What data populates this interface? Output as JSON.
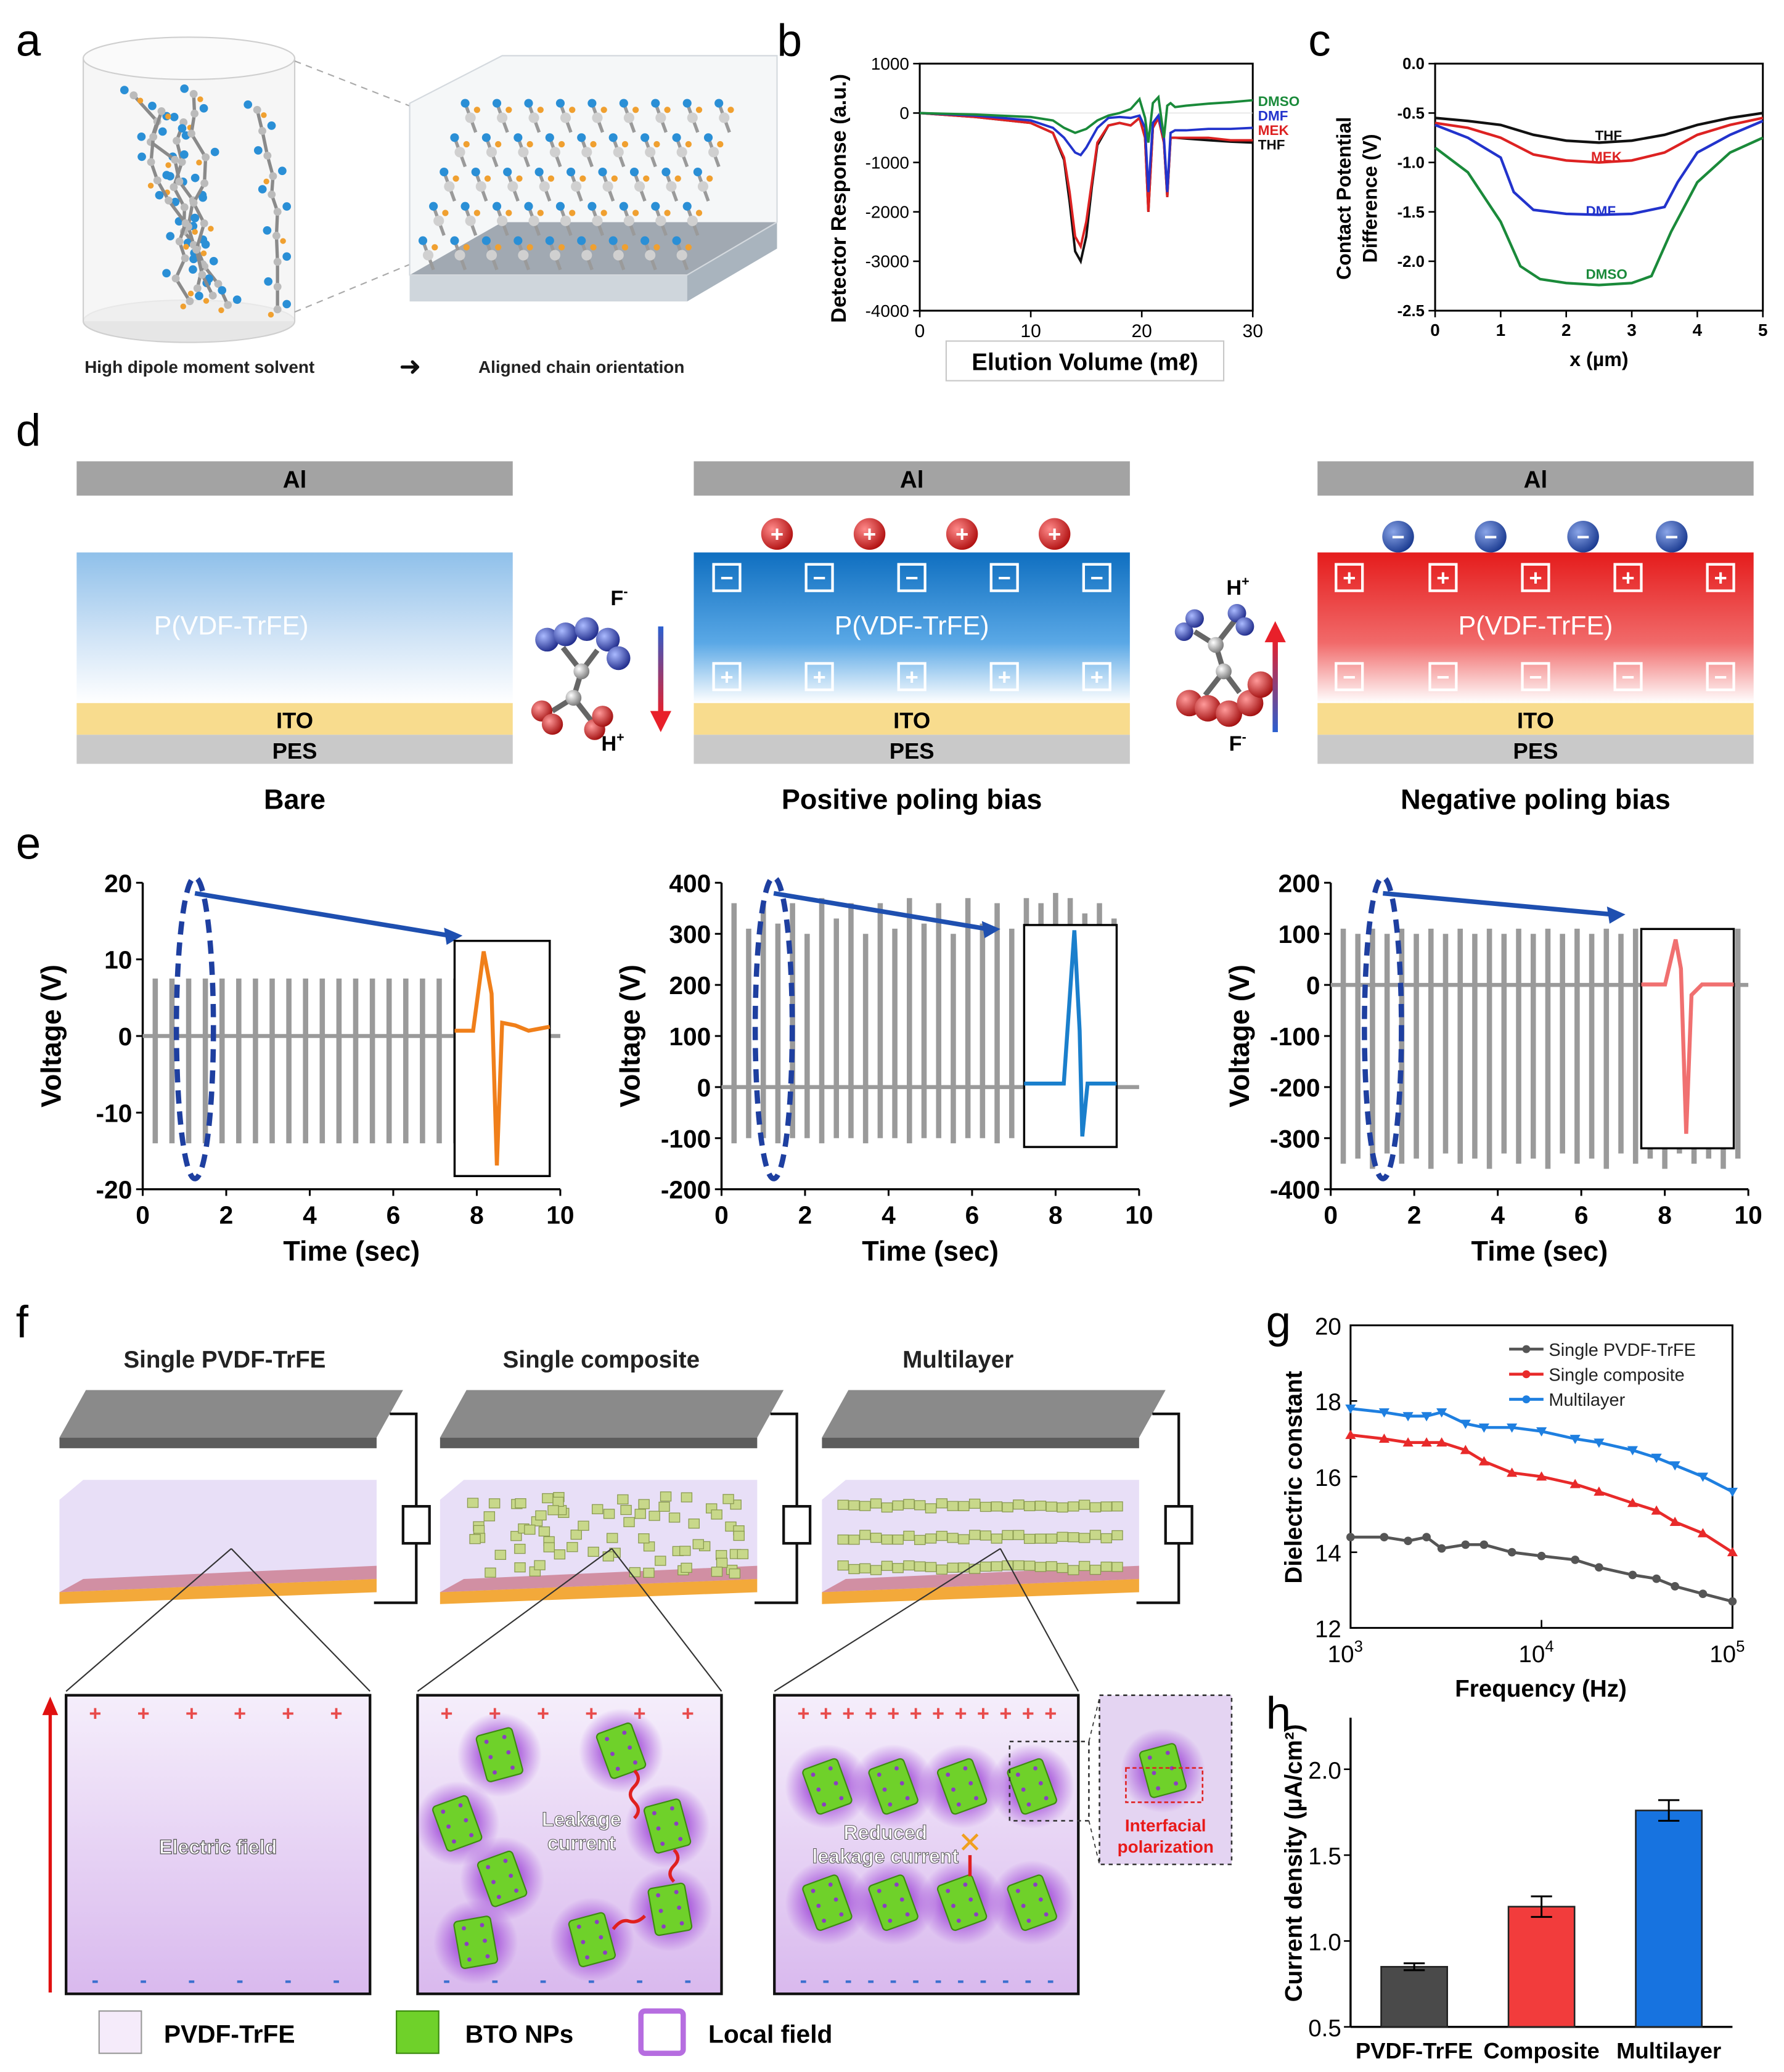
{
  "panels": {
    "a": "a",
    "b": "b",
    "c": "c",
    "d": "d",
    "e": "e",
    "f": "f",
    "g": "g",
    "h": "h"
  },
  "panel_a": {
    "left_caption": "High dipole moment solvent",
    "arrow": "➜",
    "right_caption": "Aligned chain orientation"
  },
  "panel_d": {
    "bare": {
      "electrode": "Al",
      "film": "P(VDF-TrFE)",
      "ito": "ITO",
      "pes": "PES",
      "caption": "Bare"
    },
    "positive": {
      "electrode": "Al",
      "film": "P(VDF-TrFE)",
      "ito": "ITO",
      "pes": "PES",
      "caption": "Positive poling bias"
    },
    "negative": {
      "electrode": "Al",
      "film": "P(VDF-TrFE)",
      "ito": "ITO",
      "pes": "PES",
      "caption": "Negative poling bias"
    },
    "mol1": {
      "top": "F",
      "top_sup": "-",
      "bottom": "H",
      "bottom_sup": "+"
    },
    "mol2": {
      "top": "H",
      "top_sup": "+",
      "bottom": "F",
      "bottom_sup": "-"
    },
    "plus": "+",
    "minus": "−"
  },
  "panel_f": {
    "titles": [
      "Single PVDF-TrFE",
      "Single composite",
      "Multilayer"
    ],
    "zoom_labels": {
      "field": "Electric field",
      "leak": "Leakage",
      "leak2": "current",
      "reduced": "Reduced",
      "reduced2": "leakage current",
      "inter1": "Interfacial",
      "inter2": "polarization"
    },
    "cross": "✕",
    "plus": "+",
    "minus": "-",
    "legend": [
      "PVDF-TrFE",
      "BTO NPs",
      "Local field"
    ]
  },
  "colors": {
    "dmso": "#1a8a3a",
    "dmf": "#2233cc",
    "mek": "#dd2222",
    "thf": "#111111",
    "orange": "#f07f1a",
    "blue": "#1a7fcc",
    "pink": "#f07070",
    "grey": "#9a9a9a"
  },
  "chart_data": [
    {
      "id": "b",
      "type": "line",
      "xlabel": "Elution Volume (mℓ)",
      "ylabel": "Detector Response (a.u.)",
      "xlim": [
        0,
        30
      ],
      "ylim": [
        -4000,
        1000
      ],
      "xticks": [
        0,
        10,
        20,
        30
      ],
      "yticks": [
        1000,
        0,
        -1000,
        -2000,
        -3000,
        -4000
      ],
      "legend": [
        "DMSO",
        "DMF",
        "MEK",
        "THF"
      ],
      "series": [
        {
          "name": "DMSO",
          "x": [
            0,
            5,
            10,
            12,
            13,
            14,
            15,
            16,
            17,
            18,
            19,
            19.8,
            20.3,
            20.6,
            21,
            21.5,
            22,
            22.3,
            22.6,
            23,
            24,
            26,
            28,
            30
          ],
          "y": [
            0,
            -30,
            -80,
            -150,
            -300,
            -400,
            -320,
            -150,
            -50,
            0,
            80,
            280,
            -100,
            -600,
            200,
            320,
            -500,
            150,
            200,
            120,
            150,
            190,
            220,
            260
          ]
        },
        {
          "name": "DMF",
          "x": [
            0,
            5,
            10,
            12,
            13,
            14,
            14.5,
            15,
            16,
            17,
            18,
            19,
            19.8,
            20.3,
            20.6,
            21,
            21.5,
            22,
            22.3,
            22.6,
            23,
            24,
            26,
            28,
            30
          ],
          "y": [
            0,
            -50,
            -150,
            -300,
            -500,
            -800,
            -850,
            -700,
            -300,
            -100,
            -80,
            -100,
            -50,
            -300,
            -1600,
            -200,
            -50,
            -500,
            -1600,
            -400,
            -350,
            -350,
            -320,
            -320,
            -300
          ]
        },
        {
          "name": "MEK",
          "x": [
            0,
            5,
            10,
            12,
            13,
            13.5,
            14,
            14.5,
            15,
            15.5,
            16,
            17,
            18,
            19,
            19.8,
            20.3,
            20.6,
            21,
            21.5,
            22,
            22.3,
            22.6,
            23,
            24,
            26,
            28,
            30
          ],
          "y": [
            0,
            -80,
            -200,
            -400,
            -900,
            -1600,
            -2500,
            -2700,
            -2200,
            -1400,
            -600,
            -250,
            -200,
            -250,
            -100,
            -500,
            -2000,
            -300,
            -100,
            -600,
            -1700,
            -500,
            -500,
            -500,
            -500,
            -550,
            -550
          ]
        },
        {
          "name": "THF",
          "x": [
            0,
            5,
            10,
            12,
            13,
            13.5,
            14,
            14.5,
            15,
            15.5,
            16,
            17,
            18,
            19,
            19.8,
            20.3,
            20.6,
            21,
            21.5,
            22,
            22.3,
            22.6,
            23,
            24,
            26,
            28,
            30
          ],
          "y": [
            0,
            -80,
            -200,
            -400,
            -950,
            -1800,
            -2800,
            -3000,
            -2500,
            -1500,
            -650,
            -250,
            -200,
            -250,
            -100,
            -500,
            -2000,
            -300,
            -100,
            -600,
            -1700,
            -500,
            -500,
            -520,
            -550,
            -580,
            -600
          ]
        }
      ]
    },
    {
      "id": "c",
      "type": "line",
      "xlabel": "x (µm)",
      "ylabel": "Contact Potential Difference (V)",
      "xlim": [
        0,
        5
      ],
      "ylim": [
        -2.5,
        0
      ],
      "xticks": [
        0,
        1,
        2,
        3,
        4,
        5
      ],
      "yticks": [
        0,
        -0.5,
        -1.0,
        -1.5,
        -2.0,
        -2.5
      ],
      "labels": [
        "THF",
        "MEK",
        "DMF",
        "DMSO"
      ],
      "series": [
        {
          "name": "THF",
          "x": [
            0,
            0.5,
            1,
            1.5,
            2,
            2.5,
            3,
            3.5,
            4,
            4.5,
            5
          ],
          "y": [
            -0.55,
            -0.58,
            -0.62,
            -0.72,
            -0.78,
            -0.8,
            -0.78,
            -0.72,
            -0.62,
            -0.55,
            -0.5
          ]
        },
        {
          "name": "MEK",
          "x": [
            0,
            0.5,
            1,
            1.5,
            2,
            2.5,
            3,
            3.5,
            4,
            4.5,
            5
          ],
          "y": [
            -0.6,
            -0.65,
            -0.75,
            -0.92,
            -0.98,
            -1.0,
            -0.98,
            -0.9,
            -0.72,
            -0.62,
            -0.55
          ]
        },
        {
          "name": "DMF",
          "x": [
            0,
            0.5,
            1,
            1.2,
            1.5,
            2,
            2.5,
            3,
            3.5,
            3.7,
            4,
            4.5,
            5
          ],
          "y": [
            -0.62,
            -0.75,
            -0.95,
            -1.3,
            -1.48,
            -1.52,
            -1.53,
            -1.52,
            -1.45,
            -1.2,
            -0.9,
            -0.72,
            -0.58
          ]
        },
        {
          "name": "DMSO",
          "x": [
            0,
            0.5,
            1,
            1.3,
            1.6,
            2,
            2.5,
            3,
            3.3,
            3.6,
            4,
            4.5,
            5
          ],
          "y": [
            -0.85,
            -1.1,
            -1.6,
            -2.05,
            -2.18,
            -2.22,
            -2.24,
            -2.22,
            -2.15,
            -1.7,
            -1.2,
            -0.9,
            -0.75
          ]
        }
      ]
    },
    {
      "id": "e1",
      "type": "line",
      "xlabel": "Time (sec)",
      "ylabel": "Voltage (V)",
      "xlim": [
        0,
        10
      ],
      "ylim": [
        -20,
        20
      ],
      "xticks": [
        0,
        2,
        4,
        6,
        8,
        10
      ],
      "yticks": [
        20,
        10,
        0,
        -10,
        -20
      ],
      "pulse_times": [
        0.3,
        0.7,
        1.1,
        1.5,
        1.9,
        2.3,
        2.7,
        3.1,
        3.5,
        3.9,
        4.3,
        4.7,
        5.1,
        5.5,
        5.9,
        6.3,
        6.7,
        7.1,
        7.5
      ],
      "pulse_high": [
        7.5,
        7.5,
        7.5,
        7.5,
        7.5,
        7.5,
        7.5,
        7.5,
        7.5,
        7.5,
        7.5,
        7.5,
        7.5,
        7.5,
        7.5,
        7.5,
        7.5,
        7.5,
        7.5
      ],
      "pulse_low": [
        -14,
        -14,
        -14,
        -14,
        -14,
        -14,
        -14,
        -14,
        -14,
        -14,
        -14,
        -14,
        -14,
        -14,
        -14,
        -14,
        -14,
        -14,
        -14
      ],
      "inset_color": "#f07f1a"
    },
    {
      "id": "e2",
      "type": "line",
      "xlabel": "Time (sec)",
      "ylabel": "Voltage (V)",
      "xlim": [
        0,
        10
      ],
      "ylim": [
        -200,
        400
      ],
      "xticks": [
        0,
        2,
        4,
        6,
        8,
        10
      ],
      "yticks": [
        400,
        300,
        200,
        100,
        0,
        -100,
        -200
      ],
      "pulse_times": [
        0.3,
        0.65,
        1.0,
        1.35,
        1.7,
        2.05,
        2.4,
        2.75,
        3.1,
        3.45,
        3.8,
        4.15,
        4.5,
        4.85,
        5.2,
        5.55,
        5.9,
        6.25,
        6.6,
        6.95,
        7.3,
        7.65,
        8.0,
        8.35,
        8.7,
        9.05,
        9.4
      ],
      "pulse_high": [
        360,
        310,
        360,
        320,
        360,
        300,
        370,
        330,
        360,
        300,
        360,
        310,
        370,
        320,
        360,
        300,
        370,
        320,
        360,
        310,
        370,
        360,
        380,
        370,
        340,
        360,
        330
      ],
      "pulse_low": [
        -110,
        -100,
        -100,
        -110,
        -100,
        -100,
        -110,
        -100,
        -100,
        -110,
        -100,
        -100,
        -110,
        -100,
        -100,
        -110,
        -100,
        -100,
        -110,
        -100,
        -100,
        -110,
        -100,
        -100,
        -110,
        -100,
        -100
      ],
      "inset_color": "#1a7fcc"
    },
    {
      "id": "e3",
      "type": "line",
      "xlabel": "Time (sec)",
      "ylabel": "Voltage (V)",
      "xlim": [
        0,
        10
      ],
      "ylim": [
        -400,
        200
      ],
      "xticks": [
        0,
        2,
        4,
        6,
        8,
        10
      ],
      "yticks": [
        200,
        100,
        0,
        -100,
        -200,
        -300,
        -400
      ],
      "pulse_times": [
        0.3,
        0.65,
        1.0,
        1.35,
        1.7,
        2.05,
        2.4,
        2.75,
        3.1,
        3.45,
        3.8,
        4.15,
        4.5,
        4.85,
        5.2,
        5.55,
        5.9,
        6.25,
        6.6,
        6.95,
        7.3,
        7.65,
        8.0,
        8.35,
        8.7,
        9.05,
        9.4,
        9.75
      ],
      "pulse_high": [
        110,
        100,
        110,
        100,
        110,
        100,
        110,
        100,
        110,
        100,
        110,
        100,
        110,
        100,
        110,
        100,
        110,
        100,
        110,
        100,
        110,
        100,
        110,
        100,
        110,
        100,
        110,
        110
      ],
      "pulse_low": [
        -350,
        -340,
        -360,
        -330,
        -350,
        -340,
        -360,
        -330,
        -350,
        -340,
        -360,
        -330,
        -350,
        -340,
        -360,
        -330,
        -350,
        -340,
        -360,
        -330,
        -350,
        -340,
        -360,
        -330,
        -350,
        -340,
        -360,
        -340
      ],
      "inset_color": "#f07070"
    },
    {
      "id": "g",
      "type": "line",
      "xlabel": "Frequency (Hz)",
      "ylabel": "Dielectric constant",
      "xscale": "log",
      "xlim": [
        1000,
        100000
      ],
      "ylim": [
        12,
        20
      ],
      "yticks": [
        12,
        14,
        16,
        18,
        20
      ],
      "xticks": [
        {
          "v": 1000,
          "base": "10",
          "exp": "3"
        },
        {
          "v": 10000,
          "base": "10",
          "exp": "4"
        },
        {
          "v": 100000,
          "base": "10",
          "exp": "5"
        }
      ],
      "series": [
        {
          "name": "Single PVDF-TrFE",
          "color": "#555555",
          "marker": "circle",
          "x": [
            1000,
            1500,
            2000,
            2500,
            3000,
            4000,
            5000,
            7000,
            10000,
            15000,
            20000,
            30000,
            40000,
            50000,
            70000,
            100000
          ],
          "y": [
            14.4,
            14.4,
            14.3,
            14.4,
            14.1,
            14.2,
            14.2,
            14.0,
            13.9,
            13.8,
            13.6,
            13.4,
            13.3,
            13.1,
            12.9,
            12.7
          ]
        },
        {
          "name": "Single composite",
          "color": "#e82a2a",
          "marker": "triangle",
          "x": [
            1000,
            1500,
            2000,
            2500,
            3000,
            4000,
            5000,
            7000,
            10000,
            15000,
            20000,
            30000,
            40000,
            50000,
            70000,
            100000
          ],
          "y": [
            17.1,
            17.0,
            16.9,
            16.9,
            16.9,
            16.7,
            16.4,
            16.1,
            16.0,
            15.8,
            15.6,
            15.3,
            15.1,
            14.8,
            14.5,
            14.0
          ]
        },
        {
          "name": "Multilayer",
          "color": "#1e7fe0",
          "marker": "triangle-down",
          "x": [
            1000,
            1500,
            2000,
            2500,
            3000,
            4000,
            5000,
            7000,
            10000,
            15000,
            20000,
            30000,
            40000,
            50000,
            70000,
            100000
          ],
          "y": [
            17.8,
            17.7,
            17.6,
            17.6,
            17.7,
            17.4,
            17.3,
            17.3,
            17.2,
            17.0,
            16.9,
            16.7,
            16.5,
            16.3,
            16.0,
            15.6
          ]
        }
      ]
    },
    {
      "id": "h",
      "type": "bar",
      "xlabel": "",
      "ylabel": "Current density (µA/cm²)",
      "ylim": [
        0.5,
        2.3
      ],
      "yticks": [
        0.5,
        1.0,
        1.5,
        2.0
      ],
      "categories": [
        "PVDF-TrFE",
        "Composite",
        "Multilayer"
      ],
      "values": [
        0.85,
        1.2,
        1.76
      ],
      "errors": [
        0.02,
        0.06,
        0.06
      ],
      "colors": [
        "#4a4a4a",
        "#f23c3c",
        "#1773e0"
      ]
    }
  ]
}
